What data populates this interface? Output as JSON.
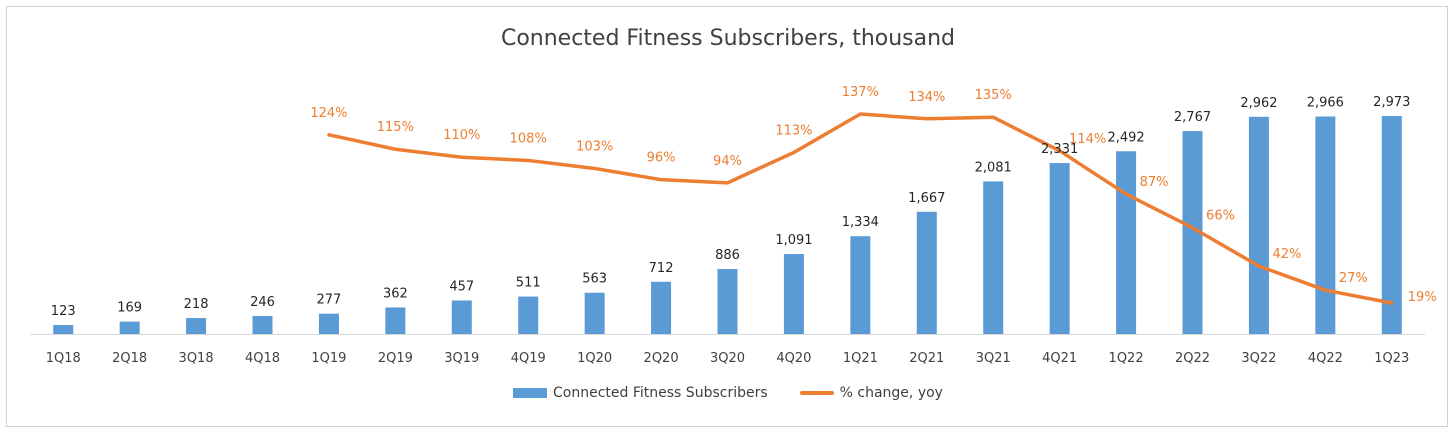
{
  "chart_data": {
    "type": "bar",
    "title": "Connected Fitness Subscribers, thousand",
    "categories": [
      "1Q18",
      "2Q18",
      "3Q18",
      "4Q18",
      "1Q19",
      "2Q19",
      "3Q19",
      "4Q19",
      "1Q20",
      "2Q20",
      "3Q20",
      "4Q20",
      "1Q21",
      "2Q21",
      "3Q21",
      "4Q21",
      "1Q22",
      "2Q22",
      "3Q22",
      "4Q22",
      "1Q23"
    ],
    "series": [
      {
        "name": "Connected Fitness Subscribers",
        "type": "bar",
        "color": "#5B9BD5",
        "values": [
          123,
          169,
          218,
          246,
          277,
          362,
          457,
          511,
          563,
          712,
          886,
          1091,
          1334,
          1667,
          2081,
          2331,
          2492,
          2767,
          2962,
          2966,
          2973
        ],
        "labels": [
          "123",
          "169",
          "218",
          "246",
          "277",
          "362",
          "457",
          "511",
          "563",
          "712",
          "886",
          "1,091",
          "1,334",
          "1,667",
          "2,081",
          "2,331",
          "2,492",
          "2,767",
          "2,962",
          "2,966",
          "2,973"
        ]
      },
      {
        "name": "% change, yoy",
        "type": "line",
        "color": "#ED7D31",
        "values": [
          null,
          null,
          null,
          null,
          124,
          115,
          110,
          108,
          103,
          96,
          94,
          113,
          137,
          134,
          135,
          114,
          87,
          66,
          42,
          27,
          19
        ],
        "labels": [
          "",
          "",
          "",
          "",
          "124%",
          "115%",
          "110%",
          "108%",
          "103%",
          "96%",
          "94%",
          "113%",
          "137%",
          "134%",
          "135%",
          "114%",
          "87%",
          "66%",
          "42%",
          "27%",
          "19%"
        ]
      }
    ],
    "legend_position": "bottom",
    "grid": false
  }
}
